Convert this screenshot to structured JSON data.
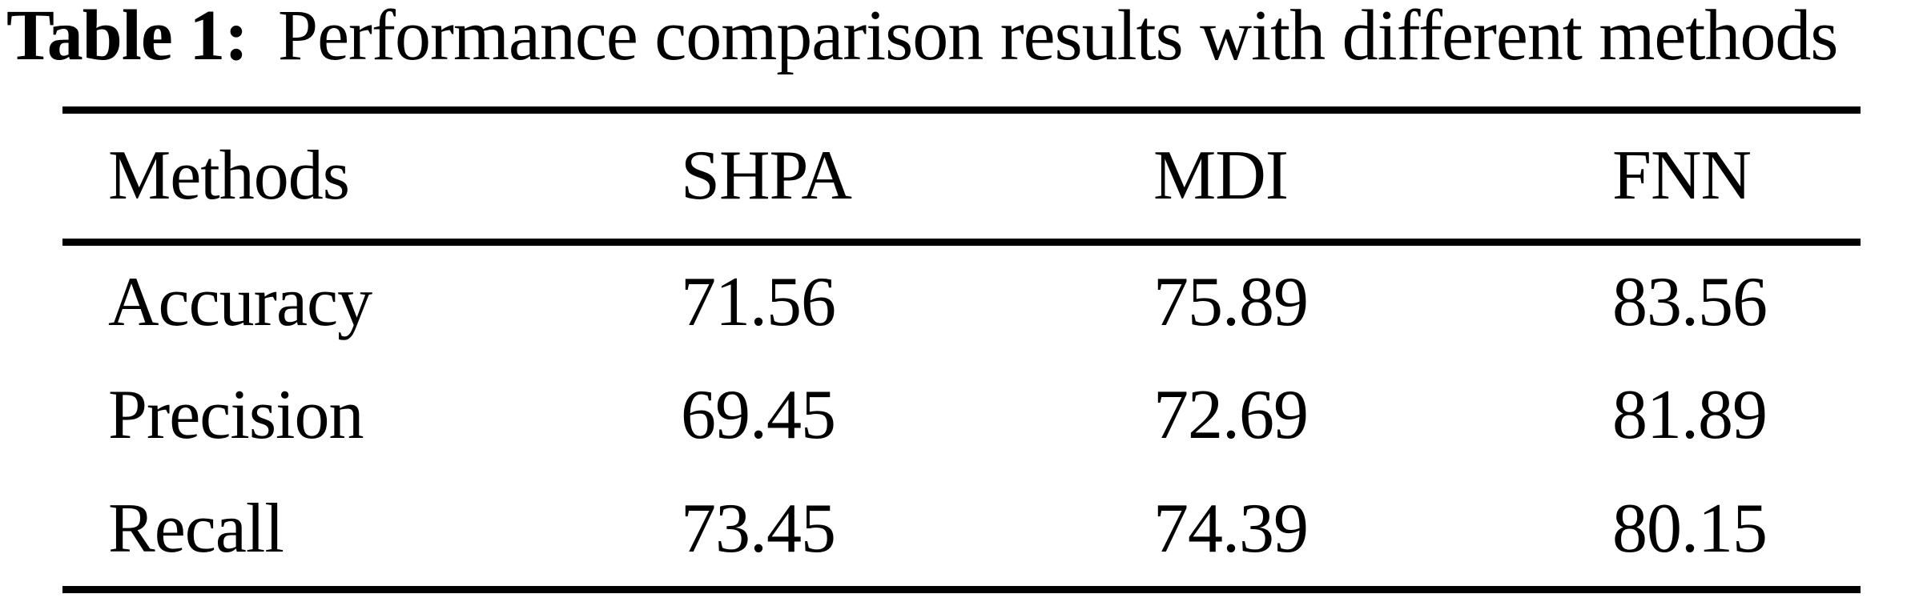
{
  "caption": {
    "label": "Table 1:",
    "text": "Performance comparison results with different methods"
  },
  "table": {
    "columns": [
      "Methods",
      "SHPA",
      "MDI",
      "FNN"
    ],
    "rows": [
      {
        "label": "Accuracy",
        "shpa": "71.56",
        "mdi": "75.89",
        "fnn": "83.56"
      },
      {
        "label": "Precision",
        "shpa": "69.45",
        "mdi": "72.69",
        "fnn": "81.89"
      },
      {
        "label": "Recall",
        "shpa": "73.45",
        "mdi": "74.39",
        "fnn": "80.15"
      }
    ]
  },
  "chart_data": {
    "type": "table",
    "title": "Table 1: Performance comparison results with different methods",
    "columns": [
      "Methods",
      "SHPA",
      "MDI",
      "FNN"
    ],
    "rows": [
      [
        "Accuracy",
        71.56,
        75.89,
        83.56
      ],
      [
        "Precision",
        69.45,
        72.69,
        81.89
      ],
      [
        "Recall",
        73.45,
        74.39,
        80.15
      ]
    ]
  },
  "colors": {
    "text": "#000000",
    "background": "#ffffff",
    "rule": "#000000"
  }
}
